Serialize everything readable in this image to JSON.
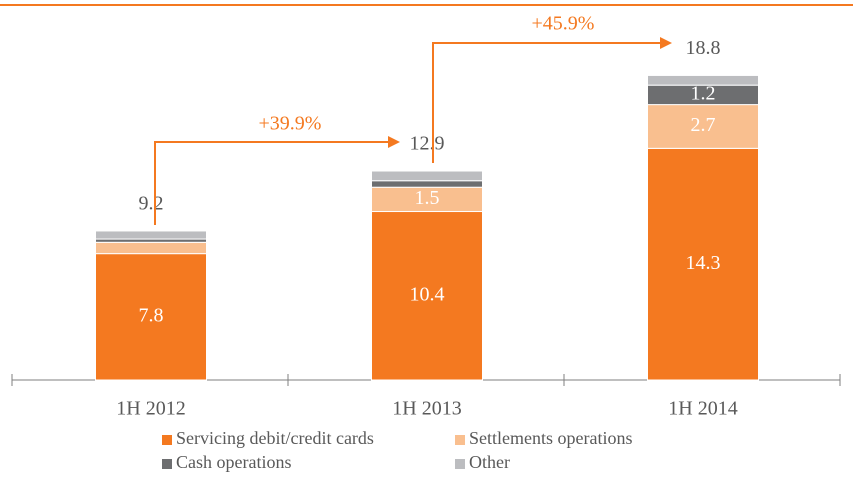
{
  "chart_data": {
    "type": "stacked_bar",
    "categories": [
      "1H 2012",
      "1H 2013",
      "1H 2014"
    ],
    "series": [
      {
        "name": "Servicing debit/credit cards",
        "color": "#f47920",
        "values": [
          7.8,
          10.4,
          14.3
        ],
        "value_labels": [
          "7.8",
          "10.4",
          "14.3"
        ]
      },
      {
        "name": "Settlements operations",
        "color": "#f9bf8f",
        "values": [
          0.7,
          1.5,
          2.7
        ],
        "value_labels": [
          null,
          "1.5",
          "2.7"
        ]
      },
      {
        "name": "Cash operations",
        "color": "#6d6e70",
        "values": [
          0.2,
          0.4,
          1.2
        ],
        "value_labels": [
          null,
          null,
          "1.2"
        ]
      },
      {
        "name": "Other",
        "color": "#bcbdc0",
        "values": [
          0.5,
          0.6,
          0.6
        ],
        "value_labels": [
          null,
          null,
          null
        ]
      }
    ],
    "totals": [
      9.2,
      12.9,
      18.8
    ],
    "annotations": [
      "+39.9%",
      "+45.9%"
    ]
  }
}
